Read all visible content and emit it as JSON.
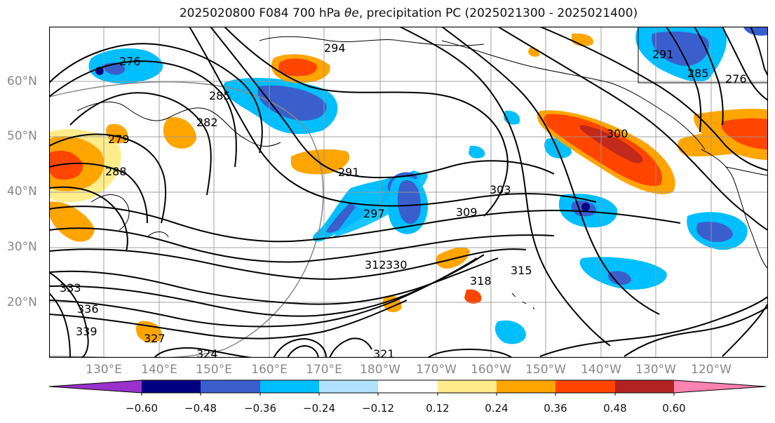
{
  "title_prefix": "2025020800 F084 700 hPa ",
  "title_symbol": "θe",
  "title_suffix": ", precipitation PC (2025021300 - 2025021400)",
  "lat_labels": [
    "60°N",
    "50°N",
    "40°N",
    "30°N",
    "20°N"
  ],
  "lon_labels": [
    "130°E",
    "140°E",
    "150°E",
    "160°E",
    "170°E",
    "180°W",
    "170°W",
    "160°W",
    "150°W",
    "140°W",
    "130°W",
    "120°W"
  ],
  "contour_labels": [
    "294",
    "276",
    "285",
    "282",
    "279",
    "288",
    "291",
    "297",
    "303",
    "309",
    "312",
    "318",
    "315",
    "321",
    "324",
    "327",
    "330",
    "333",
    "336",
    "339",
    "300",
    "276",
    "285",
    "291"
  ],
  "colorbar": {
    "ticks": [
      "−0.60",
      "−0.48",
      "−0.36",
      "−0.24",
      "−0.12",
      "0.12",
      "0.24",
      "0.36",
      "0.48",
      "0.60"
    ],
    "colors": [
      "#9932cc",
      "#000080",
      "#3a5fcd",
      "#00bfff",
      "#b0e2ff",
      "#ffffff",
      "#ffec8b",
      "#ffa500",
      "#ff4500",
      "#b22222",
      "#ff83b0"
    ]
  }
}
